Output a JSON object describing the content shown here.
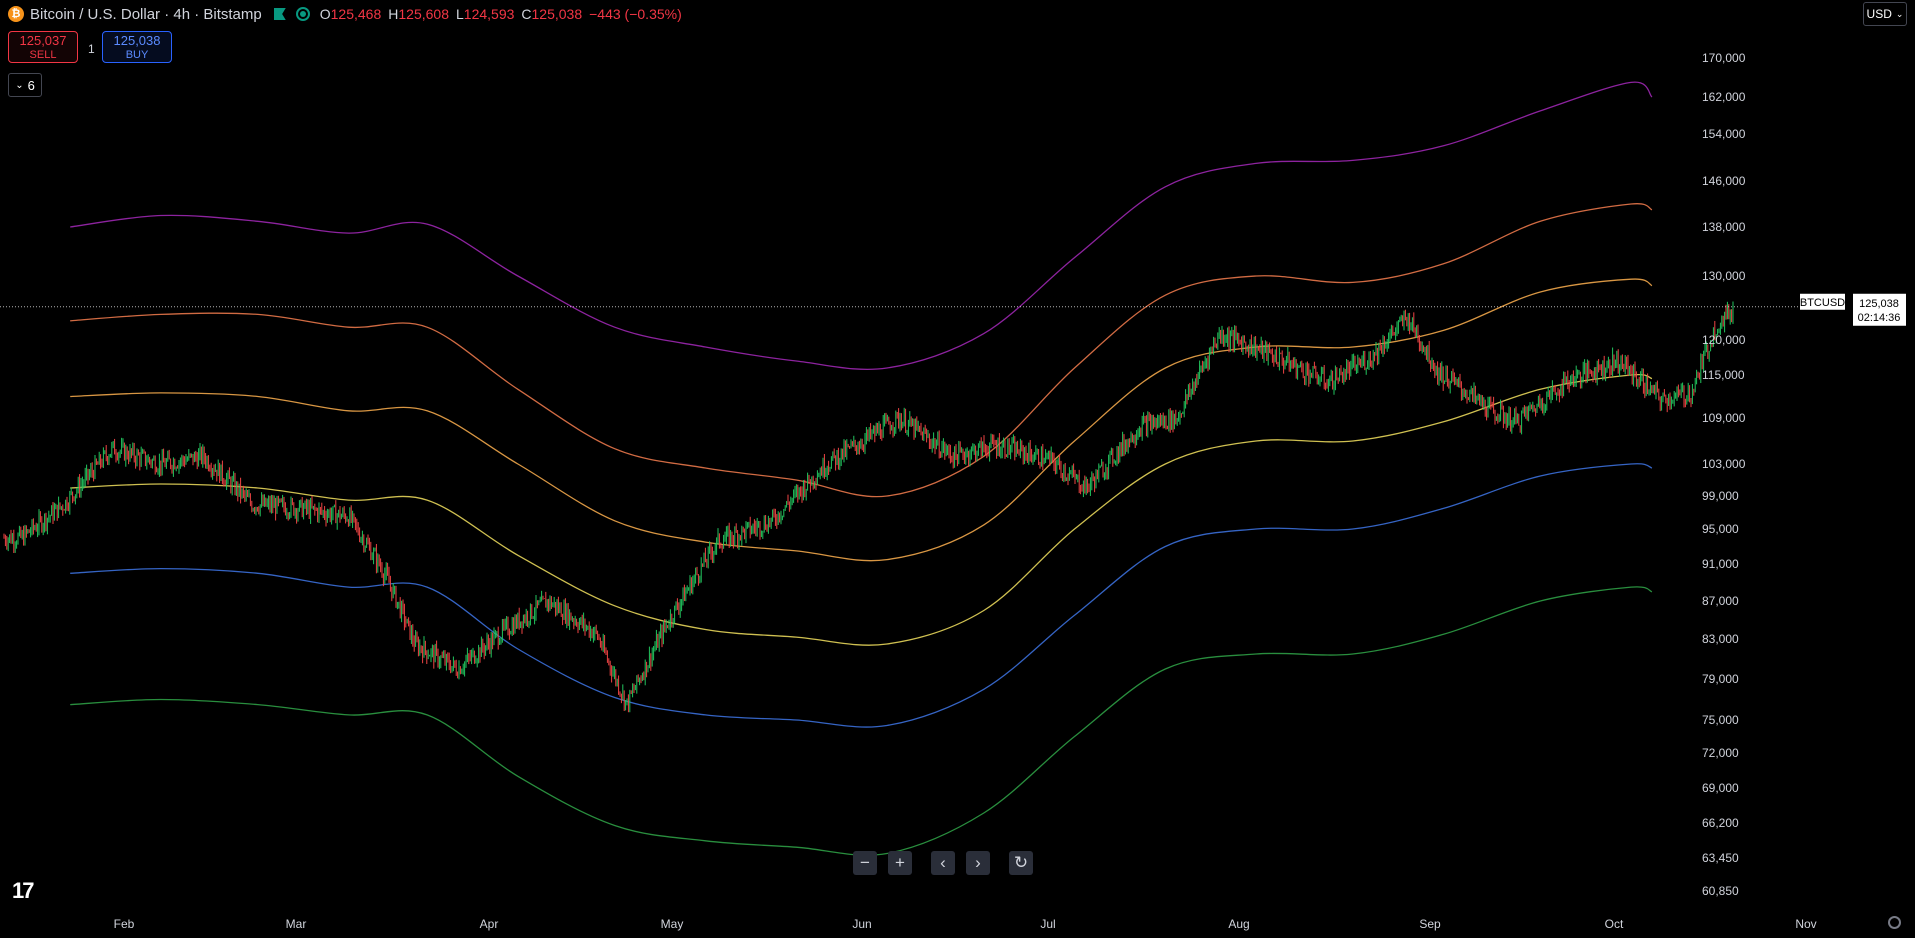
{
  "header": {
    "title": "Bitcoin / U.S. Dollar · 4h · Bitstamp",
    "coin_symbol": "₿",
    "open_label": "O",
    "open": "125,468",
    "high_label": "H",
    "high": "125,608",
    "low_label": "L",
    "low": "124,593",
    "close_label": "C",
    "close": "125,038",
    "change": "−443 (−0.35%)"
  },
  "trade": {
    "sell_price": "125,037",
    "sell_label": "SELL",
    "quantity": "1",
    "buy_price": "125,038",
    "buy_label": "BUY"
  },
  "indicators_toggle": {
    "count": "6",
    "icon": "chevron-down-icon"
  },
  "currency": {
    "label": "USD"
  },
  "controls": [
    {
      "name": "zoom-out-button",
      "glyph": "−"
    },
    {
      "name": "zoom-in-button",
      "glyph": "+"
    },
    {
      "name": "scroll-left-button",
      "glyph": "‹"
    },
    {
      "name": "scroll-right-button",
      "glyph": "›"
    },
    {
      "name": "reset-chart-button",
      "glyph": "↻"
    }
  ],
  "logo": "17",
  "colors": {
    "up": "#22c55e",
    "down": "#ef4444",
    "background": "#000000",
    "band_purple": "#9c27b0",
    "band_orange": "#e8774a",
    "band_yellow_orange": "#f0a64a",
    "band_yellow": "#e6d55a",
    "band_blue": "#3b6fd9",
    "band_green": "#2e9d45"
  },
  "chart_data": {
    "type": "line",
    "symbol": "BTCUSD",
    "last_price": "125,038",
    "countdown": "02:14:36",
    "x_ticks": [
      "Feb",
      "Mar",
      "Apr",
      "May",
      "Jun",
      "Jul",
      "Aug",
      "Sep",
      "Oct",
      "Nov"
    ],
    "y_ticks": [
      "170,000",
      "162,000",
      "154,000",
      "146,000",
      "138,000",
      "130,000",
      "120,000",
      "115,000",
      "109,000",
      "103,000",
      "99,000",
      "95,000",
      "91,000",
      "87,000",
      "83,000",
      "79,000",
      "75,000",
      "72,000",
      "69,000",
      "66,200",
      "63,450",
      "60,850"
    ],
    "x": [
      "2025-01-05",
      "2025-01-20",
      "2025-02-05",
      "2025-02-20",
      "2025-03-05",
      "2025-03-20",
      "2025-04-05",
      "2025-04-20",
      "2025-05-05",
      "2025-05-20",
      "2025-06-05",
      "2025-06-20",
      "2025-07-05",
      "2025-07-20",
      "2025-08-05",
      "2025-08-20",
      "2025-09-05",
      "2025-09-20",
      "2025-10-07"
    ],
    "series": [
      {
        "values": [
          138000,
          140000,
          139000,
          137000,
          138500,
          130000,
          122000,
          119000,
          117000,
          116000,
          121000,
          133000,
          145000,
          149000,
          149500,
          152000,
          159000,
          165000,
          162000
        ]
      },
      {
        "values": [
          123000,
          124000,
          124000,
          122000,
          122000,
          113000,
          105000,
          102500,
          101000,
          99000,
          104000,
          116000,
          127000,
          130000,
          129000,
          132000,
          139000,
          142000,
          141000
        ]
      },
      {
        "values": [
          112000,
          112500,
          112000,
          110000,
          110000,
          103000,
          96000,
          93500,
          92500,
          91500,
          95500,
          106000,
          116000,
          119000,
          119000,
          121500,
          127500,
          129500,
          128500
        ]
      },
      {
        "values": [
          100000,
          100500,
          100000,
          98500,
          98500,
          92000,
          86500,
          84000,
          83200,
          82500,
          86000,
          95000,
          103000,
          106000,
          106000,
          108500,
          113000,
          115000,
          114500
        ]
      },
      {
        "values": [
          90000,
          90500,
          90000,
          88500,
          88500,
          82000,
          77200,
          75500,
          75000,
          74500,
          78000,
          85500,
          93000,
          95000,
          95000,
          97500,
          101500,
          103000,
          102500
        ]
      },
      {
        "values": [
          76500,
          77000,
          76500,
          75500,
          75500,
          70000,
          66000,
          64800,
          64300,
          63800,
          67000,
          73500,
          80000,
          81500,
          81500,
          83500,
          87000,
          88500,
          88000
        ]
      }
    ],
    "price": {
      "x": [
        "2024-12-28",
        "2025-01-04",
        "2025-01-12",
        "2025-01-20",
        "2025-01-27",
        "2025-02-04",
        "2025-02-12",
        "2025-02-20",
        "2025-02-26",
        "2025-03-03",
        "2025-03-10",
        "2025-03-18",
        "2025-03-25",
        "2025-04-02",
        "2025-04-07",
        "2025-04-14",
        "2025-04-22",
        "2025-05-01",
        "2025-05-10",
        "2025-05-22",
        "2025-05-31",
        "2025-06-07",
        "2025-06-16",
        "2025-06-22",
        "2025-07-01",
        "2025-07-07",
        "2025-07-14",
        "2025-07-21",
        "2025-08-01",
        "2025-08-08",
        "2025-08-14",
        "2025-08-19",
        "2025-08-28",
        "2025-09-01",
        "2025-09-10",
        "2025-09-18",
        "2025-09-25",
        "2025-09-30",
        "2025-10-04",
        "2025-10-07"
      ],
      "values": [
        94000,
        98000,
        105000,
        103000,
        104000,
        98000,
        97500,
        96500,
        90000,
        82500,
        80000,
        84000,
        87000,
        83500,
        76500,
        85000,
        93500,
        96000,
        103000,
        109000,
        104000,
        105500,
        103500,
        100000,
        108000,
        109000,
        121000,
        118500,
        114000,
        117500,
        123500,
        115500,
        110000,
        108500,
        114500,
        117000,
        111500,
        112500,
        122000,
        125038
      ]
    }
  }
}
